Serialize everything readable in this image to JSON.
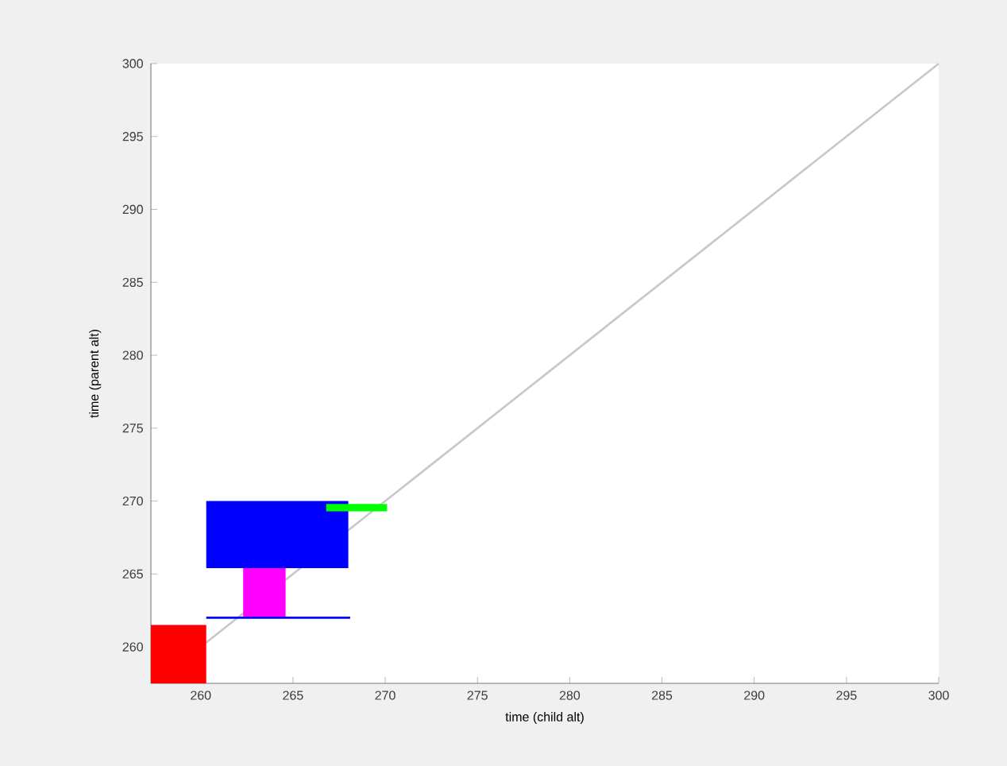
{
  "chart_data": {
    "type": "line",
    "xlabel": "time (child alt)",
    "ylabel": "time (parent alt)",
    "xlim": [
      257.3,
      300
    ],
    "ylim": [
      257.5,
      300
    ],
    "xticks": [
      260,
      265,
      270,
      275,
      280,
      285,
      290,
      295,
      300
    ],
    "yticks": [
      260,
      265,
      270,
      275,
      280,
      285,
      290,
      295,
      300
    ],
    "series": [
      {
        "color": "#c8c8c8",
        "x": [
          257.5,
          300
        ],
        "values": [
          257.5,
          300
        ]
      },
      {
        "color": "#ff0000",
        "x": [
          257.3,
          260.3
        ],
        "values": [
          null,
          null
        ],
        "lower": [
          257.5,
          257.5
        ],
        "upper": [
          261.5,
          261.5
        ]
      },
      {
        "color": "#0000ff",
        "x": [
          260.3,
          268.0
        ],
        "values": [
          null,
          null
        ],
        "lower": [
          265.4,
          265.4
        ],
        "upper": [
          270.0,
          270.0
        ]
      },
      {
        "color": "#ff00ff",
        "x": [
          262.3,
          264.6
        ],
        "values": [
          null,
          null
        ],
        "lower": [
          262.0,
          262.0
        ],
        "upper": [
          265.4,
          265.4
        ]
      },
      {
        "color": "#0000ff",
        "x": [
          260.3,
          268.1
        ],
        "values": [
          262.0,
          262.0
        ]
      },
      {
        "color": "#00ff00",
        "x": [
          266.8,
          270.1
        ],
        "values": [
          null,
          null
        ],
        "lower": [
          269.3,
          269.3
        ],
        "upper": [
          269.8,
          269.8
        ]
      }
    ]
  }
}
